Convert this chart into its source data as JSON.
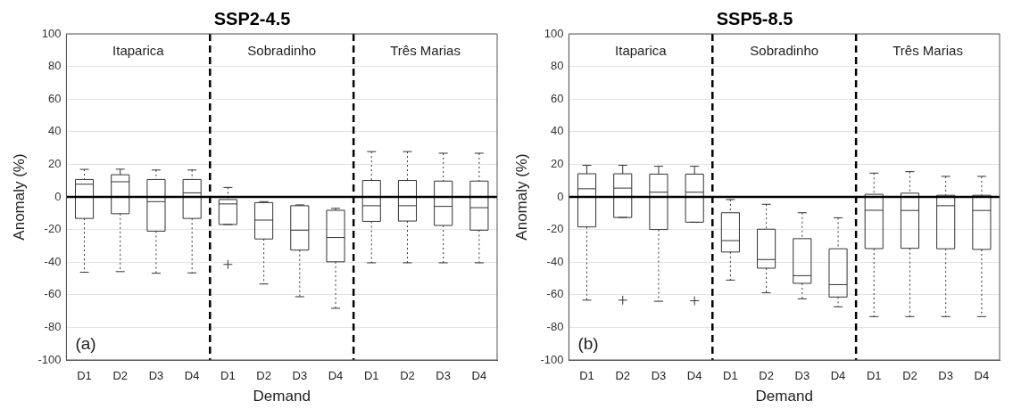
{
  "chart_data": [
    {
      "type": "box",
      "title": "SSP2-4.5",
      "xlabel": "Demand",
      "ylabel": "Anomaly (%)",
      "categories": [
        "D1",
        "D2",
        "D3",
        "D4",
        "D1",
        "D2",
        "D3",
        "D4",
        "D1",
        "D2",
        "D3",
        "D4"
      ],
      "series": [
        {
          "color": "#333333",
          "boxes": [
            {
              "low": -46.2,
              "q1": -13.2,
              "median": 7.8,
              "q3": 10.7,
              "high": 16.9
            },
            {
              "low": -45.8,
              "q1": -10.3,
              "median": 9.3,
              "q3": 13.6,
              "high": 17
            },
            {
              "low": -46.8,
              "q1": -21,
              "median": -2.9,
              "q3": 10.7,
              "high": 16.5
            },
            {
              "low": -46.6,
              "q1": -13.2,
              "median": 2.5,
              "q3": 10.7,
              "high": 16.5
            },
            {
              "low": -16.9,
              "q1": -16.9,
              "median": -4.3,
              "q3": -1.6,
              "high": 5.8,
              "outliers": [
                -41.4
              ]
            },
            {
              "low": -53.4,
              "q1": -25.8,
              "median": -14.2,
              "q3": -3.5,
              "high": -2.9
            },
            {
              "low": -61.2,
              "q1": -32.6,
              "median": -20.4,
              "q3": -5.4,
              "high": -4.9
            },
            {
              "low": -68.3,
              "q1": -39.8,
              "median": -24.9,
              "q3": -8.2,
              "high": -7
            },
            {
              "low": -40.4,
              "q1": -15,
              "median": -5.4,
              "q3": 10.1,
              "high": 27.8
            },
            {
              "low": -40.4,
              "q1": -14.8,
              "median": -5.4,
              "q3": 10.1,
              "high": 27.8
            },
            {
              "low": -40.4,
              "q1": -17.5,
              "median": -5.8,
              "q3": 9.7,
              "high": 26.8
            },
            {
              "low": -40.4,
              "q1": -20.4,
              "median": -6.6,
              "q3": 9.7,
              "high": 26.8
            }
          ]
        }
      ],
      "ylim": [
        -100,
        100
      ],
      "yticks": [
        -100,
        -80,
        -60,
        -40,
        -20,
        0,
        20,
        40,
        60,
        80,
        100
      ],
      "grid": "y",
      "legend": false,
      "ref_lines": [
        {
          "axis": "y",
          "value": 0,
          "color": "#000000",
          "line_style": "solid"
        }
      ],
      "annotations": [
        "Itaparica",
        "Sobradinho",
        "Três Marias",
        "(a)"
      ]
    },
    {
      "type": "box",
      "title": "SSP5-8.5",
      "xlabel": "Demand",
      "ylabel": "Anomaly (%)",
      "categories": [
        "D1",
        "D2",
        "D3",
        "D4",
        "D1",
        "D2",
        "D3",
        "D4",
        "D1",
        "D2",
        "D3",
        "D4"
      ],
      "series": [
        {
          "color": "#333333",
          "boxes": [
            {
              "low": -63.3,
              "q1": -18.4,
              "median": 5,
              "q3": 14.2,
              "high": 19.4
            },
            {
              "low": -12.6,
              "q1": -12.6,
              "median": 5.4,
              "q3": 14.2,
              "high": 19.4,
              "outliers": [
                -63.3
              ]
            },
            {
              "low": -64,
              "q1": -20,
              "median": 2.9,
              "q3": 14,
              "high": 18.8
            },
            {
              "low": -15.5,
              "q1": -15.5,
              "median": 2.9,
              "q3": 14,
              "high": 18.8,
              "outliers": [
                -63.7
              ]
            },
            {
              "low": -51,
              "q1": -33.8,
              "median": -26.8,
              "q3": -9.7,
              "high": -1.6
            },
            {
              "low": -58.8,
              "q1": -43.7,
              "median": -38.4,
              "q3": -19.8,
              "high": -4.5
            },
            {
              "low": -62.5,
              "q1": -53,
              "median": -48.3,
              "q3": -25.6,
              "high": -9.7
            },
            {
              "low": -67.4,
              "q1": -61.4,
              "median": -53.8,
              "q3": -31.8,
              "high": -12.8
            },
            {
              "low": -73.4,
              "q1": -31.7,
              "median": -8.2,
              "q3": 1.6,
              "high": 14.6
            },
            {
              "low": -73.4,
              "q1": -31.5,
              "median": -8.3,
              "q3": 2.3,
              "high": 15.5
            },
            {
              "low": -73.4,
              "q1": -31.8,
              "median": -5.4,
              "q3": 1,
              "high": 12.6
            },
            {
              "low": -73.4,
              "q1": -32.2,
              "median": -8.3,
              "q3": 1,
              "high": 12.6
            }
          ]
        }
      ],
      "ylim": [
        -100,
        100
      ],
      "yticks": [
        -100,
        -80,
        -60,
        -40,
        -20,
        0,
        20,
        40,
        60,
        80,
        100
      ],
      "grid": "y",
      "legend": false,
      "ref_lines": [
        {
          "axis": "y",
          "value": 0,
          "color": "#000000",
          "line_style": "solid"
        }
      ],
      "annotations": [
        "Itaparica",
        "Sobradinho",
        "Três Marias",
        "(b)"
      ]
    }
  ]
}
